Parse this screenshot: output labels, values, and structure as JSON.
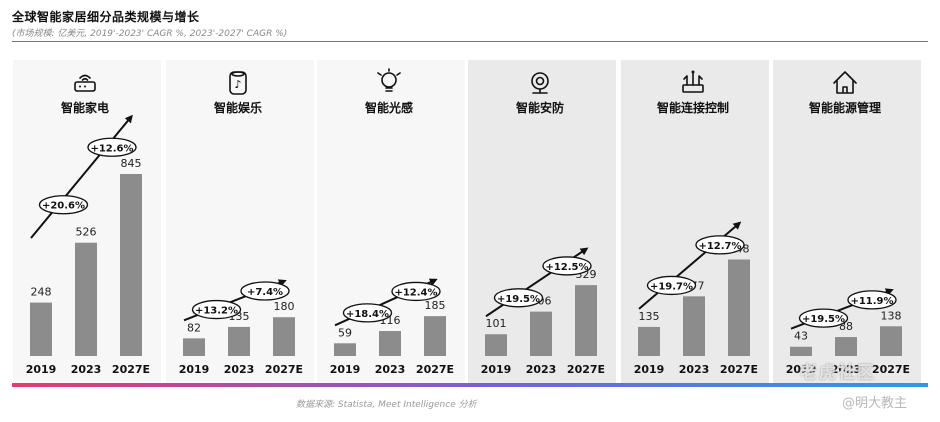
{
  "title": "全球智能家居细分品类规模与增长",
  "subtitle": "(市场规模: 亿美元, 2019'-2023' CAGR %, 2023'-2027' CAGR %)",
  "source": "数据来源: Statista, Meet Intelligence 分析",
  "watermark": {
    "line1": "老虎社区",
    "line2": "@明大教主"
  },
  "colors": {
    "bar": "#8c8c8c",
    "panel_dark": "#eaeaea",
    "panel_light": "#f7f7f7",
    "bottom_bar": [
      "#e83a6b",
      "#7b5fd6",
      "#2b9be8"
    ]
  },
  "chart_data": [
    {
      "type": "bar",
      "title": "智能家电",
      "icon": "router-icon",
      "categories": [
        "2019",
        "2023",
        "2027E"
      ],
      "values": [
        248,
        526,
        845
      ],
      "cagr": [
        "+20.6%",
        "+12.6%"
      ],
      "ylim": [
        0,
        900
      ]
    },
    {
      "type": "bar",
      "title": "智能娱乐",
      "icon": "smart-speaker-icon",
      "categories": [
        "2019",
        "2023",
        "2027E"
      ],
      "values": [
        82,
        135,
        180
      ],
      "cagr": [
        "+13.2%",
        "+7.4%"
      ],
      "ylim": [
        0,
        900
      ]
    },
    {
      "type": "bar",
      "title": "智能光感",
      "icon": "lightbulb-icon",
      "categories": [
        "2019",
        "2023",
        "2027E"
      ],
      "values": [
        59,
        116,
        185
      ],
      "cagr": [
        "+18.4%",
        "+12.4%"
      ],
      "ylim": [
        0,
        900
      ]
    },
    {
      "type": "bar",
      "title": "智能安防",
      "icon": "camera-icon",
      "categories": [
        "2019",
        "2023",
        "2027E"
      ],
      "values": [
        101,
        206,
        329
      ],
      "cagr": [
        "+19.5%",
        "+12.5%"
      ],
      "ylim": [
        0,
        900
      ]
    },
    {
      "type": "bar",
      "title": "智能连接控制",
      "icon": "hub-control-icon",
      "categories": [
        "2019",
        "2023",
        "2027E"
      ],
      "values": [
        135,
        277,
        448
      ],
      "cagr": [
        "+19.7%",
        "+12.7%"
      ],
      "ylim": [
        0,
        900
      ]
    },
    {
      "type": "bar",
      "title": "智能能源管理",
      "icon": "house-energy-icon",
      "categories": [
        "2019",
        "2023",
        "2027E"
      ],
      "values": [
        43,
        88,
        138
      ],
      "cagr": [
        "+19.5%",
        "+11.9%"
      ],
      "ylim": [
        0,
        900
      ]
    }
  ]
}
